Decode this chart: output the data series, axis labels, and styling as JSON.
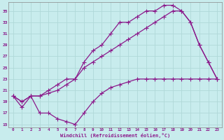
{
  "xlabel": "Windchill (Refroidissement éolien,°C)",
  "ylabel": "",
  "xlim": [
    -0.5,
    23.5
  ],
  "ylim": [
    14.5,
    36.5
  ],
  "xticks": [
    0,
    1,
    2,
    3,
    4,
    5,
    6,
    7,
    8,
    9,
    10,
    11,
    12,
    13,
    14,
    15,
    16,
    17,
    18,
    19,
    20,
    21,
    22,
    23
  ],
  "yticks": [
    15,
    17,
    19,
    21,
    23,
    25,
    27,
    29,
    31,
    33,
    35
  ],
  "bg_color": "#c8eced",
  "line_color": "#8b1a8b",
  "grid_color": "#b0d8d8",
  "series1_x": [
    0,
    1,
    2,
    3,
    4,
    5,
    6,
    7,
    8,
    9,
    10,
    11,
    12,
    13,
    14,
    15,
    16,
    17,
    18,
    19,
    20,
    21,
    22,
    23
  ],
  "series1_y": [
    20,
    18,
    20,
    17,
    17,
    16,
    15.5,
    15,
    17,
    19,
    20.5,
    21.5,
    22,
    22.5,
    23,
    23,
    23,
    23,
    23,
    23,
    23,
    23,
    23,
    23
  ],
  "series2_x": [
    0,
    1,
    2,
    3,
    4,
    5,
    6,
    7,
    8,
    9,
    10,
    11,
    12,
    13,
    14,
    15,
    16,
    17,
    18,
    19,
    20,
    21,
    22,
    23
  ],
  "series2_y": [
    20,
    19,
    20,
    20,
    20.5,
    21,
    22,
    23,
    25,
    26,
    27,
    28,
    29,
    30,
    31,
    32,
    33,
    34,
    35,
    35,
    33,
    29,
    26,
    23
  ],
  "series3_x": [
    0,
    1,
    2,
    3,
    4,
    5,
    6,
    7,
    8,
    9,
    10,
    11,
    12,
    13,
    14,
    15,
    16,
    17,
    18,
    19,
    20,
    21,
    22,
    23
  ],
  "series3_y": [
    20,
    19,
    20,
    20,
    21,
    22,
    23,
    23,
    26,
    28,
    29,
    31,
    33,
    33,
    34,
    35,
    35,
    36,
    36,
    35,
    33,
    29,
    26,
    23
  ]
}
